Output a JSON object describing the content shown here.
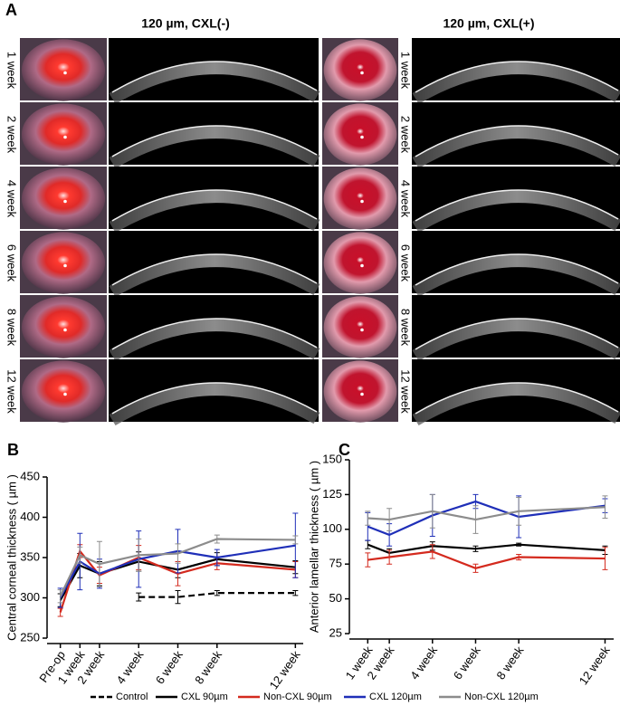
{
  "panel_a": {
    "label": "A",
    "columns": [
      {
        "title": "120 µm, CXL(-)",
        "row_labels": [
          "1 week",
          "2 week",
          "4 week",
          "6 week",
          "8 week",
          "12 week"
        ]
      },
      {
        "title": "120 µm, CXL(+)",
        "row_labels": [
          "1 week",
          "2 week",
          "4 week",
          "6 week",
          "8 week",
          "12 week"
        ]
      }
    ]
  },
  "chart_data": [
    {
      "type": "line",
      "panel_label": "B",
      "y_label": "Central corneal thickness ( µm )",
      "xlim": [
        -0.4,
        12.4
      ],
      "ylim": [
        250,
        450
      ],
      "yticks": [
        250,
        300,
        350,
        400,
        450
      ],
      "x": [
        0,
        1,
        2,
        4,
        6,
        8,
        12
      ],
      "xticks": [
        {
          "value": 0,
          "label": "Pre-op"
        },
        {
          "value": 1,
          "label": "1 week"
        },
        {
          "value": 2,
          "label": "2 week"
        },
        {
          "value": 4,
          "label": "4 week"
        },
        {
          "value": 6,
          "label": "6 week"
        },
        {
          "value": 8,
          "label": "8 week"
        },
        {
          "value": 12,
          "label": "12 week"
        }
      ],
      "series": [
        {
          "name": "Control",
          "color": "#000000",
          "dashed": true,
          "values": [
            null,
            null,
            null,
            301,
            301,
            306,
            306
          ],
          "errors": [
            null,
            null,
            null,
            5,
            8,
            3,
            3
          ]
        },
        {
          "name": "CXL 90µm",
          "color": "#000000",
          "values": [
            297,
            340,
            330,
            345,
            335,
            348,
            338
          ],
          "errors": [
            8,
            15,
            15,
            12,
            10,
            8,
            8
          ]
        },
        {
          "name": "Non-CXL 90µm",
          "color": "#d42a1e",
          "values": [
            282,
            358,
            328,
            350,
            330,
            343,
            335
          ],
          "errors": [
            5,
            8,
            10,
            15,
            15,
            8,
            10
          ]
        },
        {
          "name": "CXL 120µm",
          "color": "#1f2fb8",
          "values": [
            300,
            345,
            330,
            348,
            358,
            350,
            365
          ],
          "errors": [
            12,
            35,
            18,
            35,
            27,
            10,
            40
          ]
        },
        {
          "name": "Non-CXL 120µm",
          "color": "#8c8c8c",
          "values": [
            302,
            353,
            342,
            353,
            355,
            373,
            372
          ],
          "errors": [
            8,
            10,
            28,
            20,
            12,
            5,
            5
          ]
        }
      ]
    },
    {
      "type": "line",
      "panel_label": "C",
      "y_label": "Anterior lamellar thickness ( µm )",
      "xlim": [
        0.4,
        12.4
      ],
      "ylim": [
        25,
        150
      ],
      "yticks": [
        25,
        50,
        75,
        100,
        125,
        150
      ],
      "x": [
        1,
        2,
        4,
        6,
        8,
        12
      ],
      "xticks": [
        {
          "value": 1,
          "label": "1 week"
        },
        {
          "value": 2,
          "label": "2 week"
        },
        {
          "value": 4,
          "label": "4 week"
        },
        {
          "value": 6,
          "label": "6 week"
        },
        {
          "value": 8,
          "label": "8 week"
        },
        {
          "value": 12,
          "label": "12 week"
        }
      ],
      "series": [
        {
          "color": "#000000",
          "values": [
            89,
            83,
            88,
            86,
            89,
            85
          ],
          "errors": [
            3,
            3,
            3,
            2,
            1,
            3
          ]
        },
        {
          "color": "#d42a1e",
          "values": [
            78,
            80,
            84,
            72,
            80,
            79
          ],
          "errors": [
            5,
            5,
            5,
            3,
            2,
            8
          ]
        },
        {
          "color": "#1f2fb8",
          "values": [
            102,
            96,
            110,
            120,
            109,
            117
          ],
          "errors": [
            10,
            8,
            15,
            5,
            15,
            5
          ]
        },
        {
          "color": "#8c8c8c",
          "values": [
            108,
            107,
            113,
            107,
            113,
            116
          ],
          "errors": [
            5,
            8,
            12,
            10,
            10,
            8
          ]
        }
      ]
    }
  ]
}
